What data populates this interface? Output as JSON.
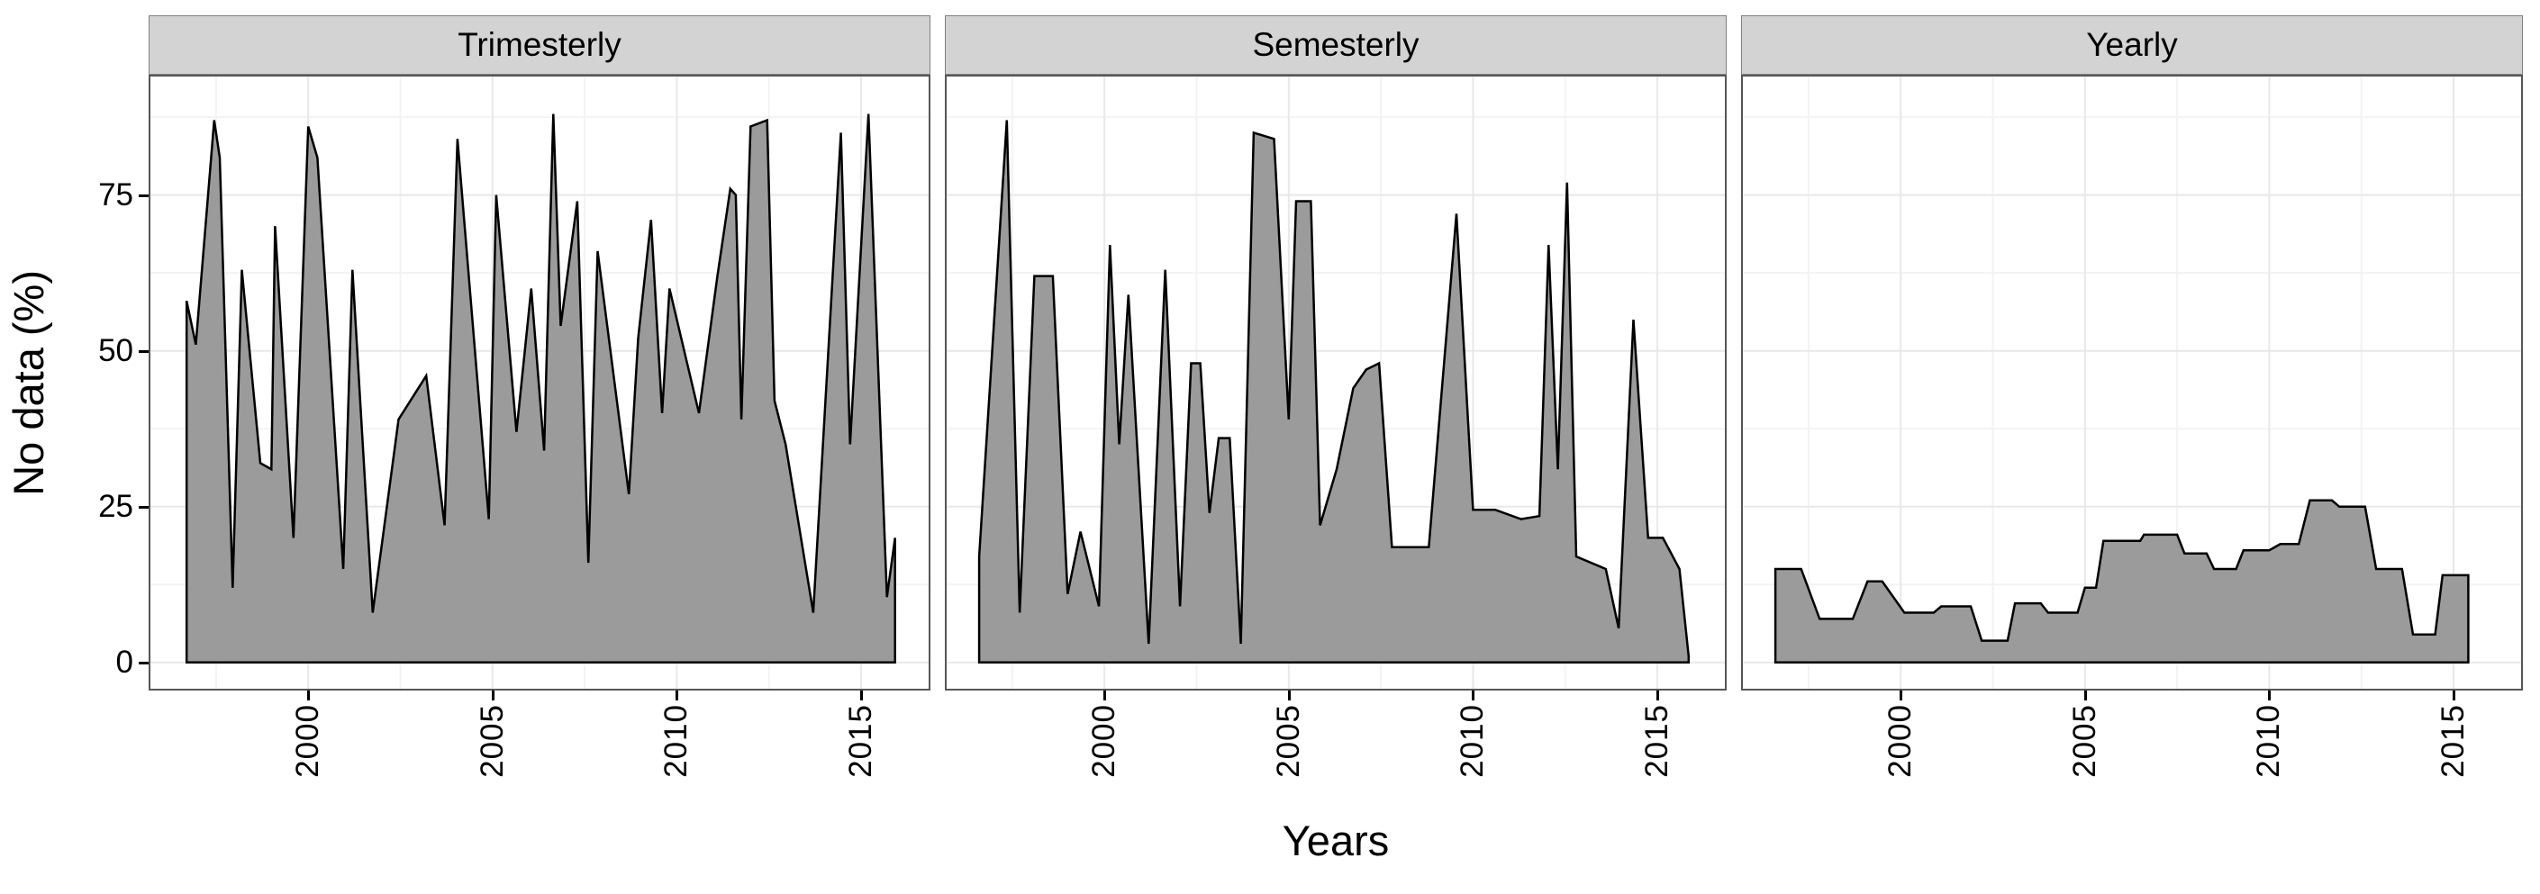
{
  "figure": {
    "x_axis_title": "Years",
    "y_axis_title": "No data (%)"
  },
  "style": {
    "area_fill": "#9b9b9b",
    "area_stroke": "#000000",
    "strip_bg": "#d3d3d3",
    "panel_border": "#565656",
    "grid_major": "#e8e8e8",
    "grid_minor": "#f3f3f3",
    "tick_color": "#000000",
    "text_color": "#000000"
  },
  "axes": {
    "x_domain": [
      1995.67,
      2016.88
    ],
    "y_domain": [
      -4.5,
      94.3
    ],
    "x_major_ticks": [
      2000,
      2005,
      2010,
      2015
    ],
    "x_minor_ticks": [
      1997.5,
      2002.5,
      2007.5,
      2012.5
    ],
    "y_major_ticks": [
      0,
      25,
      50,
      75
    ],
    "y_minor_ticks": [
      12.5,
      37.5,
      62.5,
      87.5
    ],
    "grid": true
  },
  "chart_data": [
    {
      "type": "area",
      "title": "Trimesterly",
      "xlabel": "Years",
      "ylabel": "No data (%)",
      "ylim": [
        0,
        94
      ],
      "points": [
        [
          1996.7,
          58
        ],
        [
          1996.95,
          51
        ],
        [
          1997.45,
          87
        ],
        [
          1997.6,
          81
        ],
        [
          1997.95,
          12
        ],
        [
          1998.2,
          63
        ],
        [
          1998.7,
          32
        ],
        [
          1999.0,
          31
        ],
        [
          1999.1,
          70
        ],
        [
          1999.6,
          20
        ],
        [
          2000.0,
          86
        ],
        [
          2000.25,
          81
        ],
        [
          2000.95,
          15
        ],
        [
          2001.2,
          63
        ],
        [
          2001.75,
          8
        ],
        [
          2002.45,
          39
        ],
        [
          2003.2,
          46
        ],
        [
          2003.7,
          22
        ],
        [
          2004.05,
          84
        ],
        [
          2004.9,
          23
        ],
        [
          2005.1,
          75
        ],
        [
          2005.65,
          37
        ],
        [
          2006.05,
          60
        ],
        [
          2006.4,
          34
        ],
        [
          2006.65,
          88
        ],
        [
          2006.85,
          54
        ],
        [
          2007.3,
          74
        ],
        [
          2007.6,
          16
        ],
        [
          2007.85,
          66
        ],
        [
          2008.7,
          27
        ],
        [
          2008.95,
          52
        ],
        [
          2009.3,
          71
        ],
        [
          2009.6,
          40
        ],
        [
          2009.8,
          60
        ],
        [
          2010.6,
          40
        ],
        [
          2011.1,
          62
        ],
        [
          2011.45,
          76
        ],
        [
          2011.6,
          75
        ],
        [
          2011.75,
          39
        ],
        [
          2012.0,
          86
        ],
        [
          2012.45,
          87
        ],
        [
          2012.65,
          42
        ],
        [
          2012.95,
          35
        ],
        [
          2013.7,
          8
        ],
        [
          2014.45,
          85
        ],
        [
          2014.7,
          35
        ],
        [
          2015.2,
          88
        ],
        [
          2015.7,
          10.5
        ],
        [
          2015.92,
          20
        ]
      ]
    },
    {
      "type": "area",
      "title": "Semesterly",
      "xlabel": "Years",
      "ylabel": "No data (%)",
      "ylim": [
        0,
        94
      ],
      "points": [
        [
          1996.6,
          17
        ],
        [
          1997.35,
          87
        ],
        [
          1997.7,
          8
        ],
        [
          1998.1,
          62
        ],
        [
          1998.6,
          62
        ],
        [
          1999.0,
          11
        ],
        [
          1999.35,
          21
        ],
        [
          1999.85,
          9
        ],
        [
          2000.15,
          67
        ],
        [
          2000.4,
          35
        ],
        [
          2000.65,
          59
        ],
        [
          2001.2,
          3
        ],
        [
          2001.65,
          63
        ],
        [
          2002.05,
          9
        ],
        [
          2002.35,
          48
        ],
        [
          2002.6,
          48
        ],
        [
          2002.85,
          24
        ],
        [
          2003.1,
          36
        ],
        [
          2003.4,
          36
        ],
        [
          2003.7,
          3
        ],
        [
          2004.05,
          85
        ],
        [
          2004.6,
          84
        ],
        [
          2005.0,
          39
        ],
        [
          2005.2,
          74
        ],
        [
          2005.6,
          74
        ],
        [
          2005.85,
          22
        ],
        [
          2006.3,
          31
        ],
        [
          2006.75,
          44
        ],
        [
          2007.1,
          47
        ],
        [
          2007.45,
          48
        ],
        [
          2007.8,
          18.5
        ],
        [
          2008.8,
          18.5
        ],
        [
          2009.55,
          72
        ],
        [
          2010.0,
          24.5
        ],
        [
          2010.6,
          24.5
        ],
        [
          2011.3,
          23
        ],
        [
          2011.8,
          23.5
        ],
        [
          2012.05,
          67
        ],
        [
          2012.3,
          31
        ],
        [
          2012.55,
          77
        ],
        [
          2012.8,
          17
        ],
        [
          2013.6,
          15
        ],
        [
          2013.95,
          5.5
        ],
        [
          2014.35,
          55
        ],
        [
          2014.75,
          20
        ],
        [
          2015.15,
          20
        ],
        [
          2015.6,
          15
        ],
        [
          2015.85,
          1
        ]
      ]
    },
    {
      "type": "area",
      "title": "Yearly",
      "xlabel": "Years",
      "ylabel": "No data (%)",
      "ylim": [
        0,
        94
      ],
      "points": [
        [
          1996.6,
          15
        ],
        [
          1997.3,
          15
        ],
        [
          1997.8,
          7
        ],
        [
          1998.7,
          7
        ],
        [
          1999.1,
          13
        ],
        [
          1999.5,
          13
        ],
        [
          2000.1,
          8
        ],
        [
          2000.9,
          8
        ],
        [
          2001.1,
          9
        ],
        [
          2001.9,
          9
        ],
        [
          2002.2,
          3.5
        ],
        [
          2002.9,
          3.5
        ],
        [
          2003.1,
          9.5
        ],
        [
          2003.8,
          9.5
        ],
        [
          2004.0,
          8
        ],
        [
          2004.8,
          8
        ],
        [
          2005.0,
          12
        ],
        [
          2005.3,
          12
        ],
        [
          2005.5,
          19.5
        ],
        [
          2006.5,
          19.5
        ],
        [
          2006.6,
          20.5
        ],
        [
          2007.5,
          20.5
        ],
        [
          2007.7,
          17.5
        ],
        [
          2008.3,
          17.5
        ],
        [
          2008.5,
          15
        ],
        [
          2009.1,
          15
        ],
        [
          2009.3,
          18
        ],
        [
          2010.0,
          18
        ],
        [
          2010.3,
          19
        ],
        [
          2010.8,
          19
        ],
        [
          2011.1,
          26
        ],
        [
          2011.7,
          26
        ],
        [
          2011.9,
          25
        ],
        [
          2012.6,
          25
        ],
        [
          2012.9,
          15
        ],
        [
          2013.6,
          15
        ],
        [
          2013.9,
          4.5
        ],
        [
          2014.5,
          4.5
        ],
        [
          2014.7,
          14
        ],
        [
          2015.4,
          14
        ]
      ]
    }
  ]
}
